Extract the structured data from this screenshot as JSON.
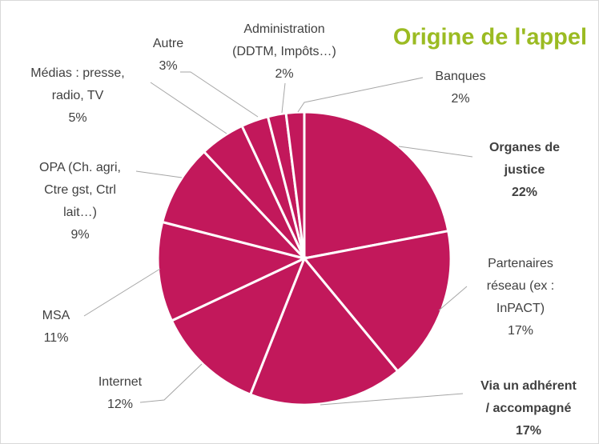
{
  "chart_data": {
    "type": "pie",
    "title": "Origine de l'appel",
    "categories": [
      "Organes de\njustice",
      "Partenaires\nréseau (ex :\nInPACT)",
      "Via un adhérent\n/ accompagné",
      "Internet",
      "MSA",
      "OPA (Ch. agri,\nCtre gst, Ctrl\nlait…)",
      "Médias : presse,\nradio, TV",
      "Autre",
      "Administration\n(DDTM, Impôts…)",
      "Banques"
    ],
    "values": [
      22,
      17,
      17,
      12,
      11,
      9,
      5,
      3,
      2,
      2
    ],
    "value_labels": [
      "22%",
      "17%",
      "17%",
      "12%",
      "11%",
      "9%",
      "5%",
      "3%",
      "2%",
      "2%"
    ],
    "color": "#c2185b",
    "title_color": "#9bbb22",
    "bold": [
      0,
      2
    ]
  }
}
